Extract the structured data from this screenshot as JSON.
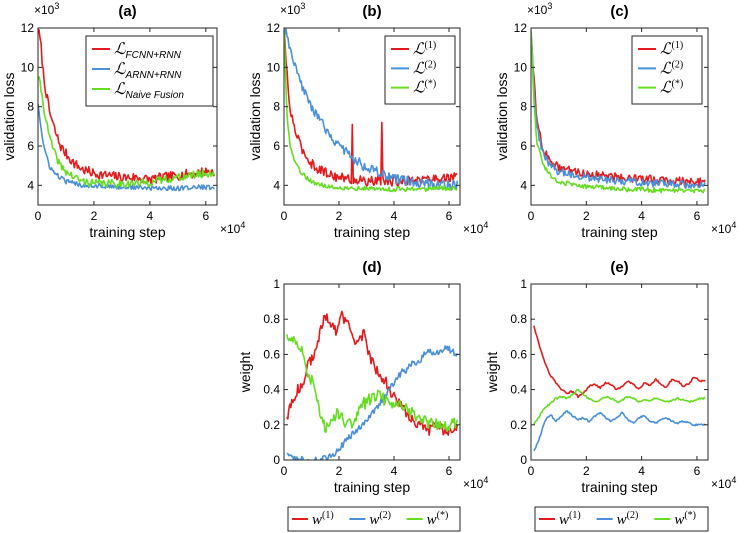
{
  "chart_data": [
    {
      "id": "a",
      "type": "line",
      "title": "(a)",
      "xlabel": "training step",
      "ylabel": "validation loss",
      "x_exponent": "×10^4",
      "y_exponent": "×10^3",
      "xlim": [
        0,
        6.4
      ],
      "ylim": [
        3,
        12
      ],
      "xticks": [
        0,
        2,
        4,
        6
      ],
      "yticks": [
        4,
        6,
        8,
        10,
        12
      ],
      "legend_position": "top-right",
      "series": [
        {
          "name": "L_FCNN+RNN",
          "legend_main": "ℒ",
          "legend_sub": "FCNN+RNN",
          "color": "#e41a1c",
          "x": [
            0,
            0.1,
            0.2,
            0.4,
            0.6,
            0.8,
            1.0,
            1.3,
            1.6,
            2.0,
            2.5,
            3.0,
            3.5,
            4.0,
            4.5,
            5.0,
            5.5,
            6.0,
            6.3
          ],
          "values": [
            12,
            11.2,
            9.5,
            7.8,
            6.8,
            6.0,
            5.6,
            5.1,
            4.8,
            4.6,
            4.5,
            4.4,
            4.4,
            4.3,
            4.4,
            4.5,
            4.6,
            4.7,
            4.7
          ],
          "noise": 0.25
        },
        {
          "name": "L_ARNN+RNN",
          "legend_main": "ℒ",
          "legend_sub": "ARNN+RNN",
          "color": "#4a90d9",
          "x": [
            0,
            0.1,
            0.2,
            0.4,
            0.6,
            0.8,
            1.0,
            1.3,
            1.6,
            2.0,
            2.5,
            3.0,
            3.5,
            4.0,
            4.5,
            5.0,
            5.5,
            6.0,
            6.3
          ],
          "values": [
            8.2,
            7.0,
            6.0,
            5.0,
            4.6,
            4.4,
            4.2,
            4.1,
            4.0,
            4.0,
            3.95,
            3.9,
            3.9,
            3.85,
            3.85,
            3.85,
            3.9,
            3.9,
            3.9
          ],
          "noise": 0.12
        },
        {
          "name": "L_Naive Fusion",
          "legend_main": "ℒ",
          "legend_sub": "Naive Fusion",
          "color": "#66dd22",
          "x": [
            0,
            0.1,
            0.2,
            0.4,
            0.6,
            0.8,
            1.0,
            1.3,
            1.6,
            2.0,
            2.5,
            3.0,
            3.5,
            4.0,
            4.5,
            5.0,
            5.5,
            6.0,
            6.3
          ],
          "values": [
            9.5,
            9.0,
            8.0,
            6.5,
            5.6,
            5.0,
            4.7,
            4.4,
            4.2,
            4.1,
            4.1,
            4.1,
            4.1,
            4.15,
            4.3,
            4.4,
            4.5,
            4.6,
            4.6
          ],
          "noise": 0.2
        }
      ]
    },
    {
      "id": "b",
      "type": "line",
      "title": "(b)",
      "xlabel": "training step",
      "ylabel": "validation loss",
      "x_exponent": "×10^4",
      "y_exponent": "×10^3",
      "xlim": [
        0,
        6.4
      ],
      "ylim": [
        3,
        12
      ],
      "xticks": [
        0,
        2,
        4,
        6
      ],
      "yticks": [
        4,
        6,
        8,
        10,
        12
      ],
      "legend_position": "top-right",
      "series": [
        {
          "name": "L^(1)",
          "legend_main": "ℒ",
          "legend_sup": "(1)",
          "color": "#e41a1c",
          "x": [
            0,
            0.1,
            0.2,
            0.4,
            0.6,
            0.8,
            1.0,
            1.3,
            1.6,
            2.0,
            2.5,
            3.0,
            3.5,
            4.0,
            4.5,
            5.0,
            5.5,
            6.0,
            6.3
          ],
          "values": [
            12,
            9.8,
            8.0,
            6.8,
            6.0,
            5.5,
            5.1,
            4.8,
            4.6,
            4.4,
            4.3,
            4.2,
            4.2,
            4.2,
            4.25,
            4.3,
            4.35,
            4.4,
            4.4
          ],
          "noise": 0.25,
          "spikes": [
            {
              "x": 2.5,
              "y": 7.1
            },
            {
              "x": 3.55,
              "y": 7.2
            }
          ]
        },
        {
          "name": "L^(2)",
          "legend_main": "ℒ",
          "legend_sup": "(2)",
          "color": "#4a90d9",
          "x": [
            0,
            0.1,
            0.2,
            0.4,
            0.6,
            0.8,
            1.0,
            1.3,
            1.6,
            2.0,
            2.5,
            3.0,
            3.5,
            4.0,
            4.5,
            5.0,
            5.5,
            6.0,
            6.3
          ],
          "values": [
            12,
            11.6,
            11.0,
            10.0,
            9.2,
            8.6,
            8.0,
            7.3,
            6.7,
            6.0,
            5.4,
            4.9,
            4.6,
            4.3,
            4.2,
            4.1,
            4.05,
            4.0,
            4.0
          ],
          "noise": 0.25
        },
        {
          "name": "L^(*)",
          "legend_main": "ℒ",
          "legend_sup": "(*)",
          "color": "#66dd22",
          "x": [
            0,
            0.1,
            0.2,
            0.4,
            0.6,
            0.8,
            1.0,
            1.3,
            1.6,
            2.0,
            2.5,
            3.0,
            3.5,
            4.0,
            4.5,
            5.0,
            5.5,
            6.0,
            6.3
          ],
          "values": [
            12,
            7.8,
            6.2,
            5.2,
            4.7,
            4.4,
            4.2,
            4.05,
            3.95,
            3.9,
            3.85,
            3.85,
            3.8,
            3.8,
            3.8,
            3.8,
            3.85,
            3.85,
            3.85
          ],
          "noise": 0.12
        }
      ]
    },
    {
      "id": "c",
      "type": "line",
      "title": "(c)",
      "xlabel": "training step",
      "ylabel": "validation loss",
      "x_exponent": "×10^4",
      "y_exponent": "×10^3",
      "xlim": [
        0,
        6.4
      ],
      "ylim": [
        3,
        12
      ],
      "xticks": [
        0,
        2,
        4,
        6
      ],
      "yticks": [
        4,
        6,
        8,
        10,
        12
      ],
      "legend_position": "top-right",
      "series": [
        {
          "name": "L^(1)",
          "legend_main": "ℒ",
          "legend_sup": "(1)",
          "color": "#e41a1c",
          "x": [
            0,
            0.1,
            0.2,
            0.4,
            0.6,
            0.8,
            1.0,
            1.3,
            1.6,
            2.0,
            2.5,
            3.0,
            3.5,
            4.0,
            4.5,
            5.0,
            5.5,
            6.0,
            6.3
          ],
          "values": [
            12,
            9.5,
            7.5,
            6.0,
            5.4,
            5.1,
            4.9,
            4.8,
            4.7,
            4.6,
            4.5,
            4.45,
            4.4,
            4.3,
            4.3,
            4.25,
            4.2,
            4.2,
            4.2
          ],
          "noise": 0.22
        },
        {
          "name": "L^(2)",
          "legend_main": "ℒ",
          "legend_sup": "(2)",
          "color": "#4a90d9",
          "x": [
            0,
            0.1,
            0.2,
            0.4,
            0.6,
            0.8,
            1.0,
            1.3,
            1.6,
            2.0,
            2.5,
            3.0,
            3.5,
            4.0,
            4.5,
            5.0,
            5.5,
            6.0,
            6.3
          ],
          "values": [
            12,
            9.0,
            7.0,
            5.8,
            5.2,
            4.9,
            4.7,
            4.6,
            4.5,
            4.4,
            4.3,
            4.25,
            4.2,
            4.15,
            4.1,
            4.1,
            4.05,
            4.0,
            4.0
          ],
          "noise": 0.2
        },
        {
          "name": "L^(*)",
          "legend_main": "ℒ",
          "legend_sup": "(*)",
          "color": "#66dd22",
          "x": [
            0,
            0.1,
            0.2,
            0.4,
            0.6,
            0.8,
            1.0,
            1.3,
            1.6,
            2.0,
            2.5,
            3.0,
            3.5,
            4.0,
            4.5,
            5.0,
            5.5,
            6.0,
            6.3
          ],
          "values": [
            12,
            8.5,
            6.3,
            5.2,
            4.7,
            4.4,
            4.2,
            4.1,
            4.0,
            3.95,
            3.9,
            3.85,
            3.8,
            3.8,
            3.75,
            3.75,
            3.75,
            3.7,
            3.7
          ],
          "noise": 0.12
        }
      ]
    },
    {
      "id": "d",
      "type": "line",
      "title": "(d)",
      "xlabel": "training step",
      "ylabel": "weight",
      "x_exponent": "×10^4",
      "y_exponent": "",
      "xlim": [
        0,
        6.4
      ],
      "ylim": [
        0,
        1
      ],
      "xticks": [
        0,
        2,
        4,
        6
      ],
      "yticks": [
        0,
        0.2,
        0.4,
        0.6,
        0.8,
        1
      ],
      "legend_position": "bottom-outside",
      "series": [
        {
          "name": "w^(1)",
          "legend_main": "w",
          "legend_sup": "(1)",
          "color": "#e41a1c",
          "x": [
            0.1,
            0.3,
            0.5,
            0.7,
            0.9,
            1.1,
            1.3,
            1.5,
            1.7,
            1.9,
            2.1,
            2.3,
            2.5,
            2.7,
            2.9,
            3.1,
            3.3,
            3.5,
            3.7,
            3.9,
            4.1,
            4.3,
            4.5,
            4.7,
            4.9,
            5.1,
            5.3,
            5.5,
            5.7,
            5.9,
            6.1,
            6.3
          ],
          "values": [
            0.25,
            0.32,
            0.4,
            0.45,
            0.55,
            0.6,
            0.72,
            0.82,
            0.78,
            0.72,
            0.82,
            0.78,
            0.7,
            0.66,
            0.72,
            0.6,
            0.52,
            0.48,
            0.45,
            0.38,
            0.33,
            0.3,
            0.26,
            0.22,
            0.2,
            0.18,
            0.17,
            0.2,
            0.18,
            0.16,
            0.18,
            0.2
          ],
          "noise": 0.03
        },
        {
          "name": "w^(2)",
          "legend_main": "w",
          "legend_sup": "(2)",
          "color": "#4a90d9",
          "x": [
            0.1,
            0.3,
            0.5,
            0.7,
            0.9,
            1.1,
            1.3,
            1.5,
            1.7,
            1.9,
            2.1,
            2.3,
            2.5,
            2.7,
            2.9,
            3.1,
            3.3,
            3.5,
            3.7,
            3.9,
            4.1,
            4.3,
            4.5,
            4.7,
            4.9,
            5.1,
            5.3,
            5.5,
            5.7,
            5.9,
            6.1,
            6.3
          ],
          "values": [
            0.04,
            0.01,
            0.0,
            0.0,
            0.0,
            0.0,
            0.0,
            0.01,
            0.02,
            0.05,
            0.08,
            0.12,
            0.15,
            0.18,
            0.2,
            0.24,
            0.28,
            0.33,
            0.36,
            0.42,
            0.46,
            0.5,
            0.52,
            0.55,
            0.56,
            0.6,
            0.62,
            0.6,
            0.62,
            0.64,
            0.62,
            0.6
          ],
          "noise": 0.02
        },
        {
          "name": "w^(*)",
          "legend_main": "w",
          "legend_sup": "(*)",
          "color": "#66dd22",
          "x": [
            0.1,
            0.3,
            0.5,
            0.7,
            0.9,
            1.1,
            1.3,
            1.5,
            1.7,
            1.9,
            2.1,
            2.3,
            2.5,
            2.7,
            2.9,
            3.1,
            3.3,
            3.5,
            3.7,
            3.9,
            4.1,
            4.3,
            4.5,
            4.7,
            4.9,
            5.1,
            5.3,
            5.5,
            5.7,
            5.9,
            6.1,
            6.3
          ],
          "values": [
            0.72,
            0.7,
            0.66,
            0.6,
            0.48,
            0.44,
            0.26,
            0.18,
            0.22,
            0.26,
            0.24,
            0.2,
            0.22,
            0.28,
            0.32,
            0.34,
            0.36,
            0.38,
            0.33,
            0.32,
            0.31,
            0.3,
            0.28,
            0.26,
            0.24,
            0.22,
            0.21,
            0.21,
            0.2,
            0.19,
            0.2,
            0.21
          ],
          "noise": 0.035
        }
      ]
    },
    {
      "id": "e",
      "type": "line",
      "title": "(e)",
      "xlabel": "training step",
      "ylabel": "weight",
      "x_exponent": "×10^4",
      "y_exponent": "",
      "xlim": [
        0,
        6.4
      ],
      "ylim": [
        0,
        1
      ],
      "xticks": [
        0,
        2,
        4,
        6
      ],
      "yticks": [
        0,
        0.2,
        0.4,
        0.6,
        0.8,
        1
      ],
      "legend_position": "bottom-outside",
      "series": [
        {
          "name": "w^(1)",
          "legend_main": "w",
          "legend_sup": "(1)",
          "color": "#e41a1c",
          "x": [
            0.1,
            0.3,
            0.5,
            0.7,
            0.9,
            1.1,
            1.3,
            1.5,
            1.7,
            1.9,
            2.1,
            2.3,
            2.5,
            2.7,
            2.9,
            3.1,
            3.3,
            3.5,
            3.7,
            3.9,
            4.1,
            4.3,
            4.5,
            4.7,
            4.9,
            5.1,
            5.3,
            5.5,
            5.7,
            5.9,
            6.1,
            6.3
          ],
          "values": [
            0.76,
            0.65,
            0.55,
            0.48,
            0.44,
            0.4,
            0.38,
            0.39,
            0.36,
            0.38,
            0.42,
            0.43,
            0.41,
            0.44,
            0.43,
            0.4,
            0.42,
            0.45,
            0.43,
            0.4,
            0.44,
            0.42,
            0.46,
            0.43,
            0.41,
            0.46,
            0.45,
            0.42,
            0.43,
            0.47,
            0.45,
            0.45
          ],
          "noise": 0.005
        },
        {
          "name": "w^(2)",
          "legend_main": "w",
          "legend_sup": "(2)",
          "color": "#4a90d9",
          "x": [
            0.1,
            0.3,
            0.5,
            0.7,
            0.9,
            1.1,
            1.3,
            1.5,
            1.7,
            1.9,
            2.1,
            2.3,
            2.5,
            2.7,
            2.9,
            3.1,
            3.3,
            3.5,
            3.7,
            3.9,
            4.1,
            4.3,
            4.5,
            4.7,
            4.9,
            5.1,
            5.3,
            5.5,
            5.7,
            5.9,
            6.1,
            6.3
          ],
          "values": [
            0.05,
            0.12,
            0.22,
            0.26,
            0.22,
            0.25,
            0.28,
            0.25,
            0.23,
            0.24,
            0.22,
            0.25,
            0.27,
            0.24,
            0.22,
            0.24,
            0.27,
            0.23,
            0.21,
            0.24,
            0.25,
            0.22,
            0.21,
            0.23,
            0.24,
            0.22,
            0.21,
            0.22,
            0.21,
            0.2,
            0.2,
            0.2
          ],
          "noise": 0.005
        },
        {
          "name": "w^(*)",
          "legend_main": "w",
          "legend_sup": "(*)",
          "color": "#66dd22",
          "x": [
            0.1,
            0.3,
            0.5,
            0.7,
            0.9,
            1.1,
            1.3,
            1.5,
            1.7,
            1.9,
            2.1,
            2.3,
            2.5,
            2.7,
            2.9,
            3.1,
            3.3,
            3.5,
            3.7,
            3.9,
            4.1,
            4.3,
            4.5,
            4.7,
            4.9,
            5.1,
            5.3,
            5.5,
            5.7,
            5.9,
            6.1,
            6.3
          ],
          "values": [
            0.2,
            0.25,
            0.3,
            0.32,
            0.35,
            0.36,
            0.35,
            0.37,
            0.4,
            0.37,
            0.35,
            0.33,
            0.34,
            0.36,
            0.35,
            0.33,
            0.34,
            0.36,
            0.35,
            0.33,
            0.34,
            0.34,
            0.35,
            0.34,
            0.33,
            0.34,
            0.35,
            0.34,
            0.33,
            0.34,
            0.35,
            0.35
          ],
          "noise": 0.005
        }
      ]
    }
  ]
}
